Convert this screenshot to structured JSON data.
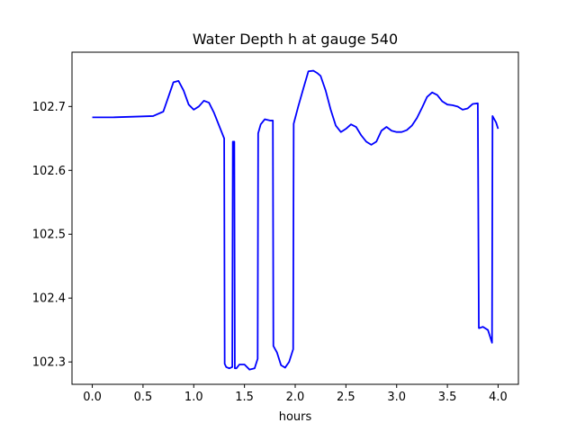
{
  "chart_data": {
    "type": "line",
    "title": "Water Depth h at gauge 540",
    "xlabel": "hours",
    "ylabel": "",
    "xlim": [
      -0.2,
      4.2
    ],
    "ylim": [
      102.265,
      102.785
    ],
    "xticks": [
      0.0,
      0.5,
      1.0,
      1.5,
      2.0,
      2.5,
      3.0,
      3.5,
      4.0
    ],
    "xtick_labels": [
      "0.0",
      "0.5",
      "1.0",
      "1.5",
      "2.0",
      "2.5",
      "3.0",
      "3.5",
      "4.0"
    ],
    "yticks": [
      102.3,
      102.4,
      102.5,
      102.6,
      102.7
    ],
    "ytick_labels": [
      "102.3",
      "102.4",
      "102.5",
      "102.6",
      "102.7"
    ],
    "grid": false,
    "legend": "none",
    "series": [
      {
        "color": "#0000ff",
        "x": [
          0.0,
          0.2,
          0.4,
          0.6,
          0.7,
          0.75,
          0.8,
          0.85,
          0.9,
          0.95,
          1.0,
          1.05,
          1.1,
          1.15,
          1.2,
          1.25,
          1.3,
          1.305,
          1.32,
          1.35,
          1.38,
          1.385,
          1.4,
          1.405,
          1.42,
          1.45,
          1.5,
          1.55,
          1.6,
          1.63,
          1.635,
          1.66,
          1.7,
          1.75,
          1.78,
          1.785,
          1.82,
          1.86,
          1.9,
          1.94,
          1.98,
          1.985,
          2.03,
          2.08,
          2.13,
          2.18,
          2.22,
          2.25,
          2.3,
          2.35,
          2.4,
          2.45,
          2.5,
          2.55,
          2.6,
          2.65,
          2.7,
          2.75,
          2.8,
          2.85,
          2.9,
          2.95,
          3.0,
          3.05,
          3.1,
          3.15,
          3.2,
          3.25,
          3.3,
          3.35,
          3.4,
          3.45,
          3.5,
          3.55,
          3.6,
          3.65,
          3.7,
          3.75,
          3.8,
          3.81,
          3.815,
          3.85,
          3.9,
          3.94,
          3.945,
          3.98,
          4.0
        ],
        "y": [
          102.683,
          102.683,
          102.684,
          102.685,
          102.692,
          102.715,
          102.738,
          102.74,
          102.725,
          102.703,
          102.695,
          102.7,
          102.709,
          102.706,
          102.69,
          102.67,
          102.65,
          102.297,
          102.292,
          102.29,
          102.292,
          102.645,
          102.645,
          102.29,
          102.29,
          102.296,
          102.296,
          102.288,
          102.29,
          102.305,
          102.658,
          102.672,
          102.68,
          102.678,
          102.678,
          102.325,
          102.315,
          102.295,
          102.291,
          102.3,
          102.32,
          102.673,
          102.7,
          102.728,
          102.755,
          102.756,
          102.752,
          102.748,
          102.725,
          102.695,
          102.67,
          102.66,
          102.665,
          102.672,
          102.668,
          102.655,
          102.645,
          102.64,
          102.645,
          102.662,
          102.668,
          102.662,
          102.66,
          102.66,
          102.663,
          102.67,
          102.682,
          102.698,
          102.715,
          102.722,
          102.718,
          102.708,
          102.703,
          102.702,
          102.7,
          102.695,
          102.697,
          102.704,
          102.705,
          102.353,
          102.353,
          102.355,
          102.35,
          102.33,
          102.685,
          102.675,
          102.665
        ]
      }
    ]
  }
}
